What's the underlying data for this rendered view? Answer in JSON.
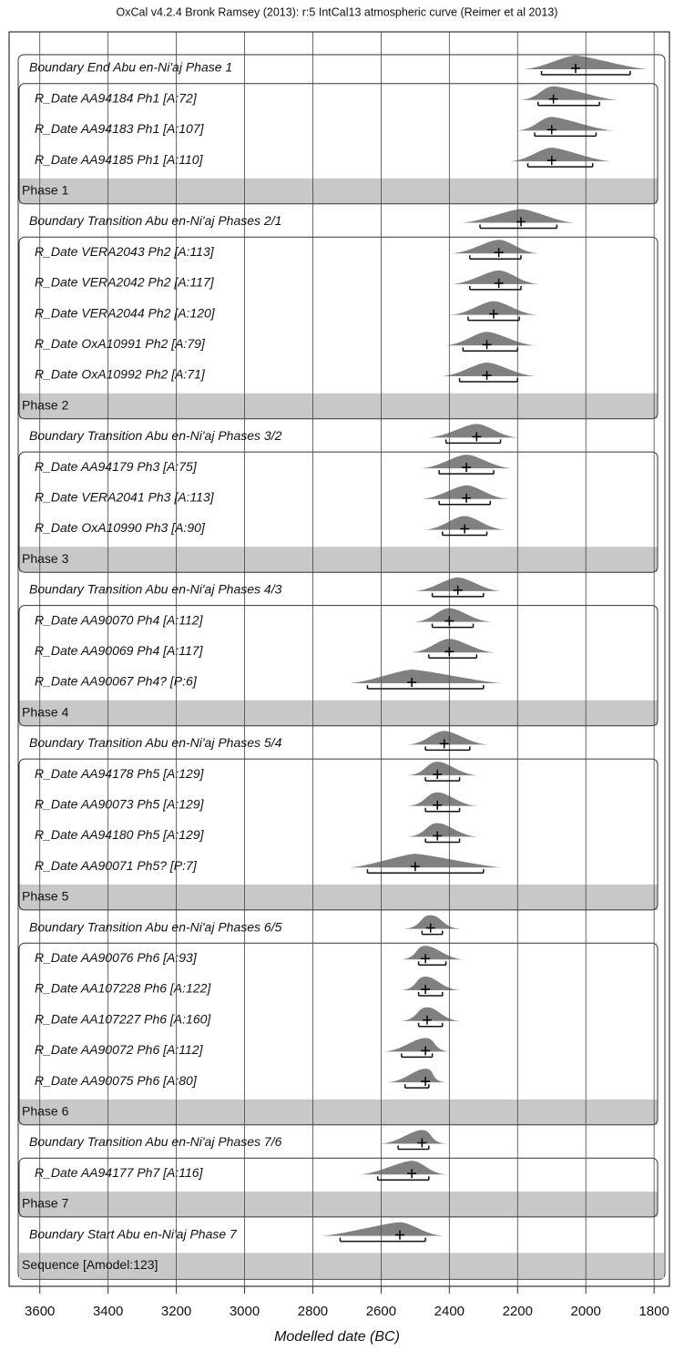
{
  "chart_data": {
    "type": "oxcal",
    "title": "OxCal v4.2.4 Bronk Ramsey (2013): r:5 IntCal13 atmospheric curve (Reimer et al 2013)",
    "xlabel": "Modelled date (BC)",
    "xlim": [
      3690,
      1755
    ],
    "xticks": [
      3600,
      3400,
      3200,
      3000,
      2800,
      2600,
      2400,
      2200,
      2000,
      1800
    ],
    "grid": true,
    "color": "#555555",
    "phases": [
      {
        "boundary": {
          "label": "Boundary End Abu en-Ni'aj Phase 1",
          "mean": 2030,
          "from": 2130,
          "to": 1870
        },
        "dates": [
          {
            "label": "R_Date AA94184 Ph1 [A:72]",
            "mean": 2095,
            "from": 2140,
            "to": 1960
          },
          {
            "label": "R_Date AA94183 Ph1 [A:107]",
            "mean": 2100,
            "from": 2150,
            "to": 1970
          },
          {
            "label": "R_Date AA94185 Ph1 [A:110]",
            "mean": 2100,
            "from": 2170,
            "to": 1980
          }
        ],
        "name": "Phase 1"
      },
      {
        "boundary": {
          "label": "Boundary Transition Abu en-Ni'aj Phases 2/1",
          "mean": 2190,
          "from": 2310,
          "to": 2085
        },
        "dates": [
          {
            "label": "R_Date VERA2043 Ph2 [A:113]",
            "mean": 2255,
            "from": 2340,
            "to": 2190
          },
          {
            "label": "R_Date VERA2042 Ph2 [A:117]",
            "mean": 2255,
            "from": 2340,
            "to": 2190
          },
          {
            "label": "R_Date VERA2044 Ph2 [A:120]",
            "mean": 2270,
            "from": 2345,
            "to": 2195
          },
          {
            "label": "R_Date OxA10991 Ph2 [A:79]",
            "mean": 2290,
            "from": 2360,
            "to": 2200
          },
          {
            "label": "R_Date OxA10992 Ph2 [A:71]",
            "mean": 2290,
            "from": 2370,
            "to": 2200
          }
        ],
        "name": "Phase 2"
      },
      {
        "boundary": {
          "label": "Boundary Transition Abu en-Ni'aj Phases 3/2",
          "mean": 2320,
          "from": 2410,
          "to": 2250
        },
        "dates": [
          {
            "label": "R_Date AA94179 Ph3 [A:75]",
            "mean": 2350,
            "from": 2430,
            "to": 2270
          },
          {
            "label": "R_Date VERA2041 Ph3 [A:113]",
            "mean": 2350,
            "from": 2430,
            "to": 2280
          },
          {
            "label": "R_Date OxA10990 Ph3 [A:90]",
            "mean": 2355,
            "from": 2420,
            "to": 2290
          }
        ],
        "name": "Phase 3"
      },
      {
        "boundary": {
          "label": "Boundary Transition Abu en-Ni'aj Phases 4/3",
          "mean": 2375,
          "from": 2450,
          "to": 2300
        },
        "dates": [
          {
            "label": "R_Date AA90070 Ph4 [A:112]",
            "mean": 2400,
            "from": 2450,
            "to": 2330
          },
          {
            "label": "R_Date AA90069 Ph4 [A:117]",
            "mean": 2400,
            "from": 2460,
            "to": 2320
          },
          {
            "label": "R_Date AA90067 Ph4? [P:6]",
            "mean": 2510,
            "from": 2640,
            "to": 2300
          }
        ],
        "name": "Phase 4"
      },
      {
        "boundary": {
          "label": "Boundary Transition Abu en-Ni'aj Phases 5/4",
          "mean": 2415,
          "from": 2470,
          "to": 2340
        },
        "dates": [
          {
            "label": "R_Date AA94178 Ph5 [A:129]",
            "mean": 2435,
            "from": 2470,
            "to": 2370
          },
          {
            "label": "R_Date AA90073 Ph5 [A:129]",
            "mean": 2435,
            "from": 2470,
            "to": 2370
          },
          {
            "label": "R_Date AA94180 Ph5 [A:129]",
            "mean": 2435,
            "from": 2470,
            "to": 2370
          },
          {
            "label": "R_Date AA90071 Ph5? [P:7]",
            "mean": 2500,
            "from": 2640,
            "to": 2300
          }
        ],
        "name": "Phase 5"
      },
      {
        "boundary": {
          "label": "Boundary Transition Abu en-Ni'aj Phases 6/5",
          "mean": 2455,
          "from": 2480,
          "to": 2420
        },
        "dates": [
          {
            "label": "R_Date AA90076 Ph6 [A:93]",
            "mean": 2470,
            "from": 2490,
            "to": 2410
          },
          {
            "label": "R_Date AA107228 Ph6 [A:122]",
            "mean": 2470,
            "from": 2490,
            "to": 2420
          },
          {
            "label": "R_Date AA107227 Ph6 [A:160]",
            "mean": 2465,
            "from": 2490,
            "to": 2420
          },
          {
            "label": "R_Date AA90072 Ph6 [A:112]",
            "mean": 2470,
            "from": 2540,
            "to": 2450
          },
          {
            "label": "R_Date AA90075 Ph6 [A:80]",
            "mean": 2470,
            "from": 2530,
            "to": 2460
          }
        ],
        "name": "Phase 6"
      },
      {
        "boundary": {
          "label": "Boundary Transition Abu en-Ni'aj Phases 7/6",
          "mean": 2480,
          "from": 2550,
          "to": 2460
        },
        "dates": [
          {
            "label": "R_Date AA94177 Ph7 [A:116]",
            "mean": 2510,
            "from": 2610,
            "to": 2460
          }
        ],
        "name": "Phase 7"
      }
    ],
    "start": {
      "label": "Boundary Start Abu en-Ni'aj Phase 7",
      "mean": 2545,
      "from": 2720,
      "to": 2470
    },
    "sequence": "Sequence [Amodel:123]"
  }
}
